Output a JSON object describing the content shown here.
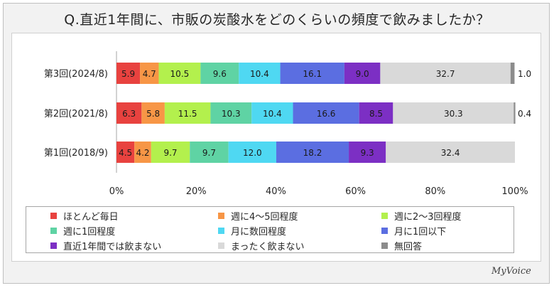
{
  "title": "Q.直近1年間に、市販の炭酸水をどのくらいの頻度で飲みましたか？",
  "logo": "MyVoice",
  "chart_data": {
    "type": "bar",
    "orientation": "horizontal",
    "stacked": "percent",
    "categories": [
      "第3回(2024/8)",
      "第2回(2021/8)",
      "第1回(2018/9)"
    ],
    "xlim": [
      0,
      100
    ],
    "xticks": [
      "0%",
      "20%",
      "40%",
      "60%",
      "80%",
      "100%"
    ],
    "legend_position": "bottom",
    "series": [
      {
        "name": "ほとんど毎日",
        "color": "#e8423f",
        "values": [
          5.9,
          6.3,
          4.5
        ]
      },
      {
        "name": "週に4～5回程度",
        "color": "#f79646",
        "values": [
          4.7,
          5.8,
          4.2
        ]
      },
      {
        "name": "週に2～3回程度",
        "color": "#b3f04d",
        "values": [
          10.5,
          11.5,
          9.7
        ]
      },
      {
        "name": "週に1回程度",
        "color": "#5fd3a4",
        "values": [
          9.6,
          10.3,
          9.7
        ]
      },
      {
        "name": "月に数回程度",
        "color": "#4fd8f2",
        "values": [
          10.4,
          10.4,
          12.0
        ]
      },
      {
        "name": "月に1回以下",
        "color": "#5b6ee1",
        "values": [
          16.1,
          16.6,
          18.2
        ]
      },
      {
        "name": "直近1年間では飲まない",
        "color": "#7c2fc4",
        "values": [
          9.0,
          8.5,
          9.3
        ]
      },
      {
        "name": "まったく飲まない",
        "color": "#d9d9d9",
        "values": [
          32.7,
          30.3,
          32.4
        ]
      },
      {
        "name": "無回答",
        "color": "#8c8c8c",
        "values": [
          1.0,
          0.4,
          0
        ]
      }
    ],
    "value_labels": [
      [
        "5.9",
        "4.7",
        "10.5",
        "9.6",
        "10.4",
        "16.1",
        "9.0",
        "32.7",
        "1.0"
      ],
      [
        "6.3",
        "5.8",
        "11.5",
        "10.3",
        "10.4",
        "16.6",
        "8.5",
        "30.3",
        "0.4"
      ],
      [
        "4.5",
        "4.2",
        "9.7",
        "9.7",
        "12.0",
        "18.2",
        "9.3",
        "32.4",
        ""
      ]
    ]
  }
}
